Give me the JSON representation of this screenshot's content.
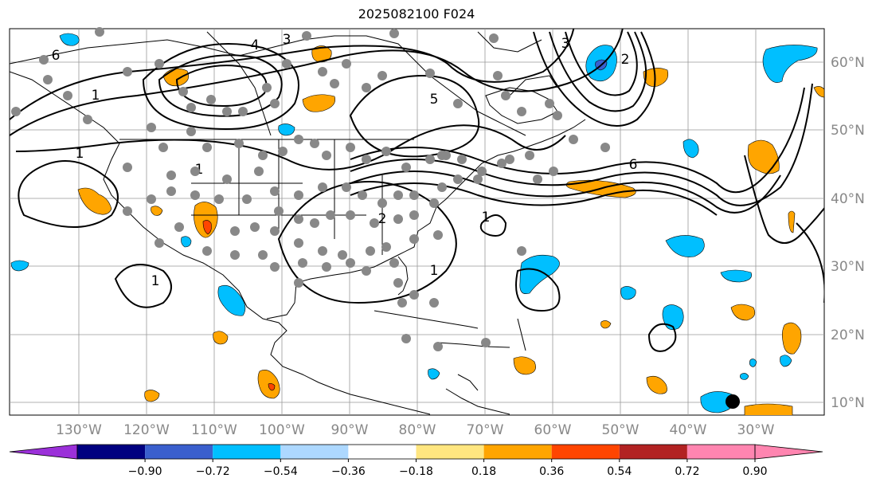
{
  "title": "2025082100 F024",
  "map": {
    "lon_labels": [
      "130°W",
      "120°W",
      "110°W",
      "100°W",
      "90°W",
      "80°W",
      "70°W",
      "60°W",
      "50°W",
      "40°W",
      "30°W"
    ],
    "lat_labels": [
      "60°N",
      "50°N",
      "40°N",
      "30°N",
      "20°N",
      "10°N"
    ],
    "contour_labels": [
      "1",
      "1",
      "1",
      "2",
      "3",
      "4",
      "5",
      "6",
      "1",
      "2",
      "3",
      "6",
      "1",
      "1"
    ],
    "colors": {
      "land_line": "#000000",
      "grid": "#999999",
      "station": "#888888",
      "marker": "#000000"
    }
  },
  "colorbar": {
    "ticks": [
      "−0.90",
      "−0.72",
      "−0.54",
      "−0.36",
      "−0.18",
      "0.18",
      "0.36",
      "0.54",
      "0.72",
      "0.90"
    ],
    "colors": [
      "#9b30d9",
      "#000080",
      "#3a5fcd",
      "#00bfff",
      "#add8ff",
      "#ffffff",
      "#ffe680",
      "#ffa500",
      "#ff4500",
      "#b22222",
      "#ff85b0"
    ]
  }
}
